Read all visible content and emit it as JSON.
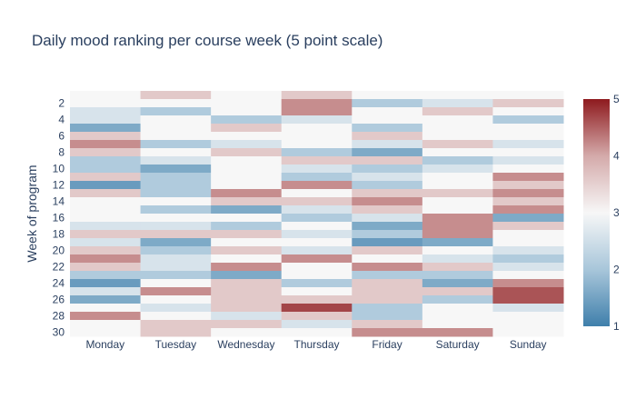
{
  "chart_data": {
    "type": "heatmap",
    "title": "Daily mood ranking per course week (5 point scale)",
    "xlabel": "",
    "ylabel": "Week of program",
    "x": [
      "Monday",
      "Tuesday",
      "Wednesday",
      "Thursday",
      "Friday",
      "Saturday",
      "Sunday"
    ],
    "y": [
      1,
      2,
      3,
      4,
      5,
      6,
      7,
      8,
      9,
      10,
      11,
      12,
      13,
      14,
      15,
      16,
      17,
      18,
      19,
      20,
      21,
      22,
      23,
      24,
      25,
      26,
      27,
      28,
      29,
      30
    ],
    "y_tick_labels": [
      "2",
      "4",
      "6",
      "8",
      "10",
      "12",
      "14",
      "16",
      "18",
      "20",
      "22",
      "24",
      "26",
      "28",
      "30"
    ],
    "y_reversed": true,
    "colorscale": [
      "#3f7fab",
      "#a8c6da",
      "#f7f7f7",
      "#d4aaaa",
      "#8e1a1e"
    ],
    "zmin": 1,
    "zmax": 5,
    "colorbar_ticks": [
      "1",
      "2",
      "3",
      "4",
      "5"
    ],
    "z": [
      [
        3.0,
        3.6,
        3.0,
        3.6,
        3.0,
        3.0,
        3.0
      ],
      [
        3.0,
        3.0,
        3.0,
        4.2,
        2.1,
        2.6,
        3.6
      ],
      [
        2.6,
        2.1,
        3.0,
        4.2,
        3.0,
        3.6,
        3.0
      ],
      [
        2.6,
        3.0,
        2.1,
        2.6,
        3.0,
        3.0,
        2.1
      ],
      [
        1.6,
        3.0,
        3.6,
        3.0,
        2.1,
        3.0,
        3.0
      ],
      [
        3.6,
        3.0,
        3.0,
        3.0,
        3.6,
        3.0,
        3.0
      ],
      [
        4.2,
        2.1,
        2.6,
        3.0,
        2.6,
        3.6,
        2.6
      ],
      [
        3.6,
        3.0,
        3.6,
        2.1,
        1.6,
        3.0,
        3.0
      ],
      [
        2.1,
        2.6,
        3.0,
        3.6,
        3.6,
        2.1,
        2.6
      ],
      [
        2.1,
        1.6,
        3.0,
        2.6,
        2.1,
        2.6,
        3.0
      ],
      [
        3.6,
        2.1,
        3.0,
        2.1,
        2.6,
        3.0,
        4.2
      ],
      [
        1.4,
        2.1,
        3.0,
        4.2,
        2.1,
        3.0,
        3.6
      ],
      [
        3.6,
        2.1,
        4.2,
        3.0,
        3.6,
        3.6,
        4.2
      ],
      [
        3.0,
        3.0,
        3.6,
        3.6,
        4.2,
        3.0,
        3.6
      ],
      [
        3.0,
        2.1,
        1.6,
        2.6,
        3.6,
        3.0,
        4.2
      ],
      [
        3.0,
        3.0,
        3.0,
        2.1,
        2.6,
        4.2,
        1.6
      ],
      [
        2.6,
        2.6,
        2.1,
        3.0,
        1.6,
        4.2,
        3.6
      ],
      [
        3.6,
        3.6,
        3.6,
        2.6,
        2.1,
        4.2,
        3.0
      ],
      [
        2.6,
        1.6,
        3.0,
        3.0,
        1.4,
        1.6,
        3.0
      ],
      [
        3.6,
        2.1,
        3.6,
        2.6,
        3.6,
        3.0,
        2.6
      ],
      [
        4.2,
        2.6,
        3.0,
        4.2,
        3.0,
        2.6,
        2.1
      ],
      [
        3.6,
        2.6,
        4.2,
        3.0,
        4.2,
        3.6,
        2.6
      ],
      [
        2.1,
        2.1,
        1.6,
        3.0,
        2.1,
        2.1,
        3.0
      ],
      [
        1.4,
        3.0,
        3.6,
        2.1,
        3.6,
        1.6,
        4.2
      ],
      [
        2.6,
        4.2,
        3.6,
        3.0,
        3.6,
        3.6,
        4.6
      ],
      [
        1.6,
        3.0,
        3.6,
        3.6,
        3.6,
        2.1,
        4.6
      ],
      [
        3.0,
        2.6,
        3.6,
        4.7,
        2.1,
        3.0,
        2.6
      ],
      [
        4.2,
        3.0,
        2.6,
        3.6,
        2.1,
        3.0,
        3.0
      ],
      [
        3.0,
        3.6,
        3.6,
        2.6,
        3.6,
        3.0,
        3.0
      ],
      [
        3.0,
        3.6,
        3.0,
        3.0,
        4.2,
        4.2,
        3.0
      ]
    ]
  }
}
